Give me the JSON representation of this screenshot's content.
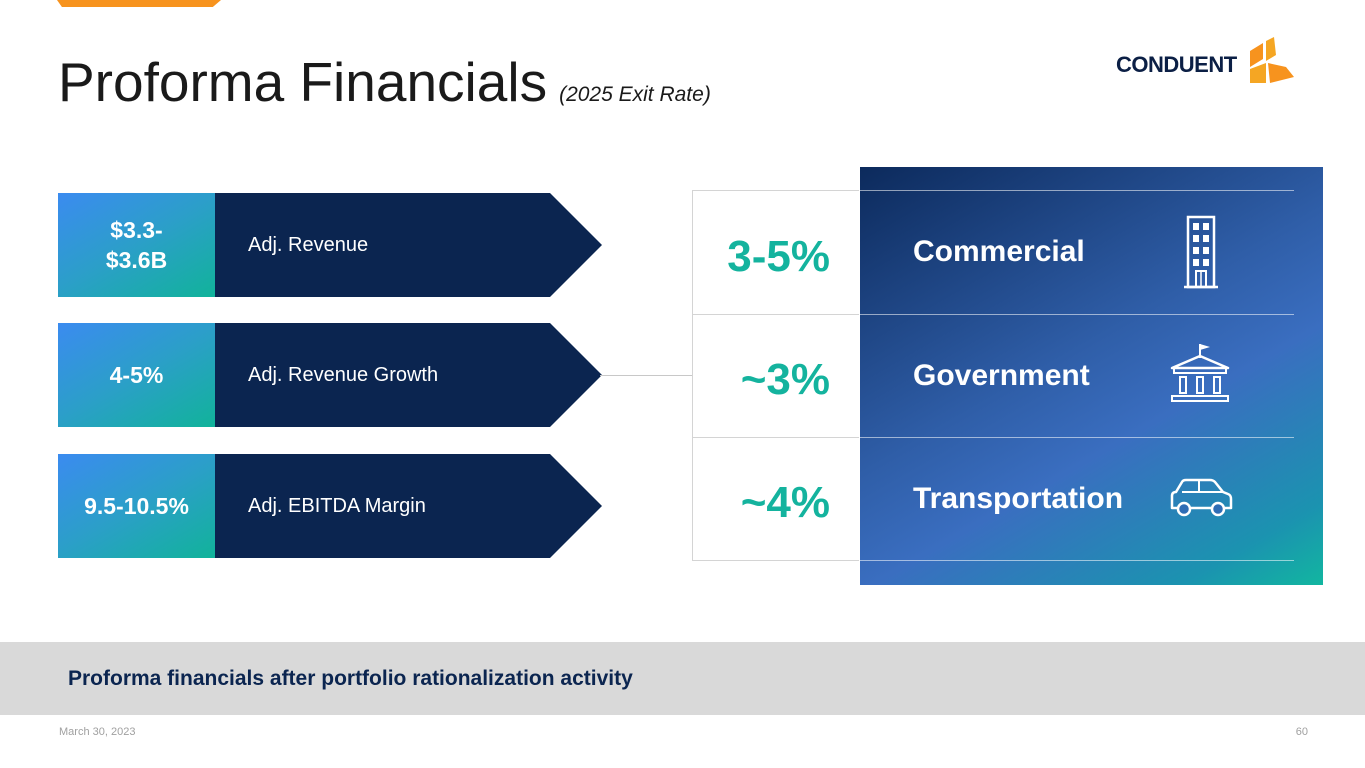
{
  "header": {
    "title": "Proforma Financials",
    "subtitle": "(2025 Exit Rate)",
    "logo_text": "CONDUENT"
  },
  "metrics": [
    {
      "value_line1": "$3.3-",
      "value_line2": "$3.6B",
      "label": "Adj. Revenue"
    },
    {
      "value": "4-5%",
      "label": "Adj. Revenue Growth"
    },
    {
      "value": "9.5-10.5%",
      "label": "Adj. EBITDA Margin"
    }
  ],
  "segments": [
    {
      "growth": "3-5%",
      "name": "Commercial",
      "icon": "building-icon"
    },
    {
      "growth": "~3%",
      "name": "Government",
      "icon": "government-building-icon"
    },
    {
      "growth": "~4%",
      "name": "Transportation",
      "icon": "car-icon"
    }
  ],
  "footer": {
    "note": "Proforma financials after portfolio rationalization activity",
    "date": "March 30, 2023",
    "page": "60"
  },
  "colors": {
    "navy": "#0b2550",
    "teal": "#14b39e",
    "orange": "#f7931e",
    "footer_band": "#d9d9d9"
  }
}
